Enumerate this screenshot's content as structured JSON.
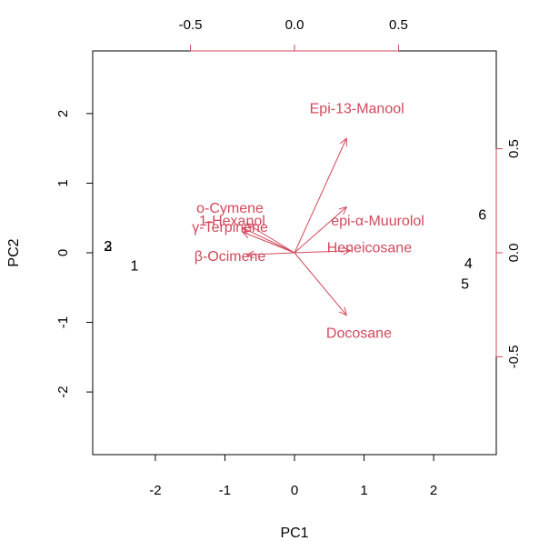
{
  "chart_data": {
    "type": "scatter",
    "subtype": "pca-biplot",
    "xlabel": "PC1",
    "ylabel": "PC2",
    "xlim": [
      -2.9,
      2.9
    ],
    "ylim": [
      -2.9,
      2.9
    ],
    "x_ticks": [
      -2,
      -1,
      0,
      1,
      2
    ],
    "y_ticks": [
      -2,
      -1,
      0,
      1,
      2
    ],
    "loading_xlim": [
      -0.97,
      0.97
    ],
    "loading_ylim": [
      -0.97,
      0.97
    ],
    "top_ticks": [
      -0.5,
      0.0,
      0.5
    ],
    "right_ticks": [
      -0.5,
      0.0,
      0.5
    ],
    "top_tick_labels": [
      "-0.5",
      "0.0",
      "0.5"
    ],
    "right_tick_labels": [
      "-0.5",
      "0.0",
      "0.5"
    ],
    "grid": false,
    "observations": [
      {
        "label": "1",
        "x": -2.3,
        "y": -0.2
      },
      {
        "label": "2",
        "x": -2.68,
        "y": 0.08
      },
      {
        "label": "3",
        "x": -2.68,
        "y": 0.08
      },
      {
        "label": "4",
        "x": 2.5,
        "y": -0.17
      },
      {
        "label": "5",
        "x": 2.45,
        "y": -0.46
      },
      {
        "label": "6",
        "x": 2.7,
        "y": 0.53
      }
    ],
    "variables": [
      {
        "name": "Epi-13-Manool",
        "x": 0.25,
        "y": 0.55,
        "label_x": 0.3,
        "label_y": 0.69
      },
      {
        "name": "o-Cymene",
        "x": -0.23,
        "y": 0.14,
        "label_x": -0.31,
        "label_y": 0.21
      },
      {
        "name": "1-Hexanol",
        "x": -0.25,
        "y": 0.12,
        "label_x": -0.3,
        "label_y": 0.15
      },
      {
        "name": "γ-Terpinene",
        "x": -0.25,
        "y": 0.1,
        "label_x": -0.31,
        "label_y": 0.12
      },
      {
        "name": "epi-α-Muurolol",
        "x": 0.25,
        "y": 0.22,
        "label_x": 0.4,
        "label_y": 0.15
      },
      {
        "name": "Heneicosane",
        "x": 0.27,
        "y": 0.01,
        "label_x": 0.36,
        "label_y": 0.02
      },
      {
        "name": "β-Ocimene",
        "x": -0.23,
        "y": -0.01,
        "label_x": -0.31,
        "label_y": -0.02
      },
      {
        "name": "Docosane",
        "x": 0.25,
        "y": -0.3,
        "label_x": 0.31,
        "label_y": -0.39
      }
    ],
    "colors": {
      "observations": "#000000",
      "variables": "#d1495b",
      "axes": "#000000"
    }
  }
}
